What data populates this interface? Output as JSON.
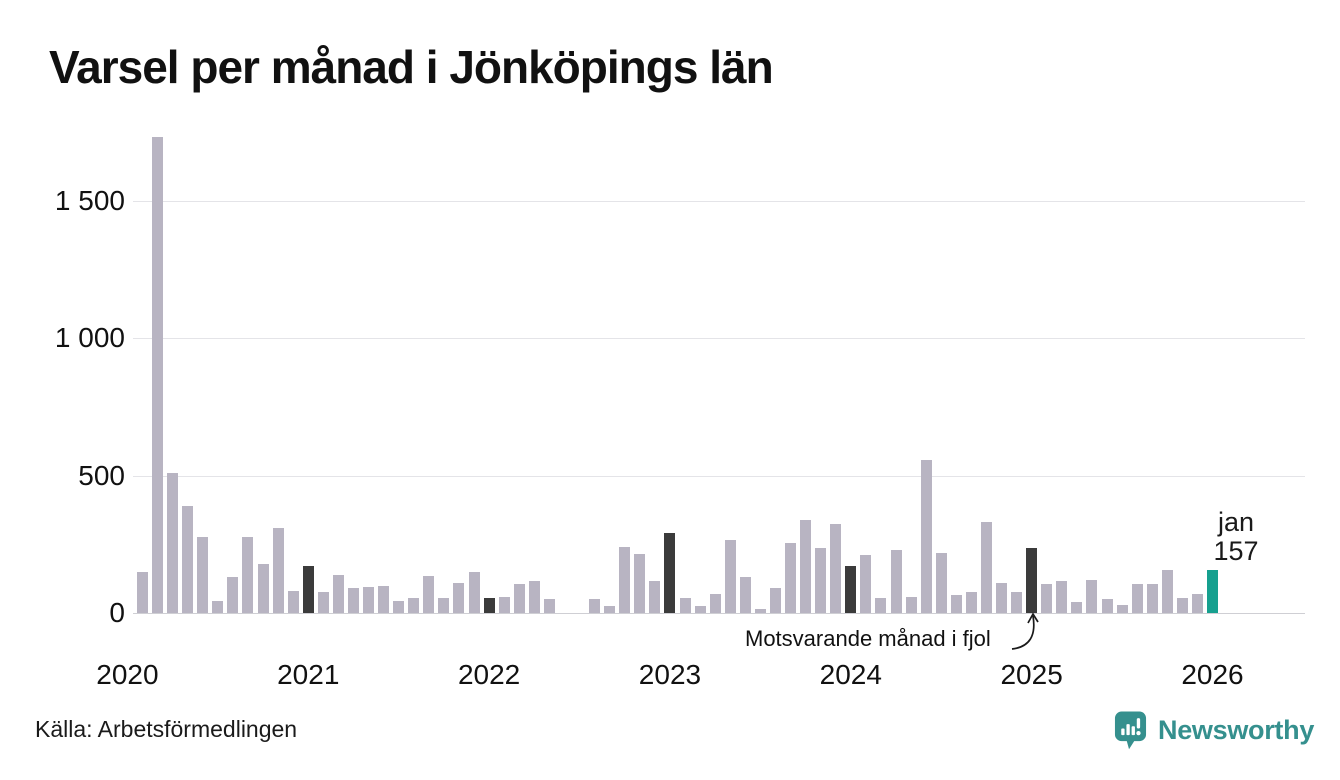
{
  "chart_data": {
    "type": "bar",
    "title": "Varsel per månad i Jönköpings län",
    "xlabel": "",
    "ylabel": "",
    "ylim": [
      0,
      1750
    ],
    "grid": "horizontal",
    "yticks": [
      {
        "value": 0,
        "label": "0"
      },
      {
        "value": 500,
        "label": "500"
      },
      {
        "value": 1000,
        "label": "1 000"
      },
      {
        "value": 1500,
        "label": "1 500"
      }
    ],
    "year_ticks": [
      "2020",
      "2021",
      "2022",
      "2023",
      "2024",
      "2025",
      "2026"
    ],
    "annotation": "Motsvarande månad i fjol",
    "current_label": {
      "month": "jan",
      "value": "157"
    },
    "colors": {
      "bar": "#b8b4c2",
      "highlight": "#3b3b3b",
      "current": "#16a08f"
    },
    "months": [
      {
        "month": "2020-02",
        "value": 150,
        "kind": "normal"
      },
      {
        "month": "2020-03",
        "value": 1730,
        "kind": "normal"
      },
      {
        "month": "2020-04",
        "value": 510,
        "kind": "normal"
      },
      {
        "month": "2020-05",
        "value": 390,
        "kind": "normal"
      },
      {
        "month": "2020-06",
        "value": 275,
        "kind": "normal"
      },
      {
        "month": "2020-07",
        "value": 45,
        "kind": "normal"
      },
      {
        "month": "2020-08",
        "value": 130,
        "kind": "normal"
      },
      {
        "month": "2020-09",
        "value": 275,
        "kind": "normal"
      },
      {
        "month": "2020-10",
        "value": 180,
        "kind": "normal"
      },
      {
        "month": "2020-11",
        "value": 310,
        "kind": "normal"
      },
      {
        "month": "2020-12",
        "value": 80,
        "kind": "normal"
      },
      {
        "month": "2021-01",
        "value": 170,
        "kind": "fjol"
      },
      {
        "month": "2021-02",
        "value": 75,
        "kind": "normal"
      },
      {
        "month": "2021-03",
        "value": 140,
        "kind": "normal"
      },
      {
        "month": "2021-04",
        "value": 90,
        "kind": "normal"
      },
      {
        "month": "2021-05",
        "value": 95,
        "kind": "normal"
      },
      {
        "month": "2021-06",
        "value": 100,
        "kind": "normal"
      },
      {
        "month": "2021-07",
        "value": 45,
        "kind": "normal"
      },
      {
        "month": "2021-08",
        "value": 55,
        "kind": "normal"
      },
      {
        "month": "2021-09",
        "value": 135,
        "kind": "normal"
      },
      {
        "month": "2021-10",
        "value": 55,
        "kind": "normal"
      },
      {
        "month": "2021-11",
        "value": 110,
        "kind": "normal"
      },
      {
        "month": "2021-12",
        "value": 150,
        "kind": "normal"
      },
      {
        "month": "2022-01",
        "value": 55,
        "kind": "fjol"
      },
      {
        "month": "2022-02",
        "value": 60,
        "kind": "normal"
      },
      {
        "month": "2022-03",
        "value": 105,
        "kind": "normal"
      },
      {
        "month": "2022-04",
        "value": 115,
        "kind": "normal"
      },
      {
        "month": "2022-05",
        "value": 50,
        "kind": "normal"
      },
      {
        "month": "2022-06",
        "value": 0,
        "kind": "normal"
      },
      {
        "month": "2022-07",
        "value": 0,
        "kind": "normal"
      },
      {
        "month": "2022-08",
        "value": 50,
        "kind": "normal"
      },
      {
        "month": "2022-09",
        "value": 25,
        "kind": "normal"
      },
      {
        "month": "2022-10",
        "value": 240,
        "kind": "normal"
      },
      {
        "month": "2022-11",
        "value": 215,
        "kind": "normal"
      },
      {
        "month": "2022-12",
        "value": 115,
        "kind": "normal"
      },
      {
        "month": "2023-01",
        "value": 290,
        "kind": "fjol"
      },
      {
        "month": "2023-02",
        "value": 55,
        "kind": "normal"
      },
      {
        "month": "2023-03",
        "value": 25,
        "kind": "normal"
      },
      {
        "month": "2023-04",
        "value": 70,
        "kind": "normal"
      },
      {
        "month": "2023-05",
        "value": 265,
        "kind": "normal"
      },
      {
        "month": "2023-06",
        "value": 130,
        "kind": "normal"
      },
      {
        "month": "2023-07",
        "value": 15,
        "kind": "normal"
      },
      {
        "month": "2023-08",
        "value": 90,
        "kind": "normal"
      },
      {
        "month": "2023-09",
        "value": 255,
        "kind": "normal"
      },
      {
        "month": "2023-10",
        "value": 340,
        "kind": "normal"
      },
      {
        "month": "2023-11",
        "value": 235,
        "kind": "normal"
      },
      {
        "month": "2023-12",
        "value": 325,
        "kind": "normal"
      },
      {
        "month": "2024-01",
        "value": 170,
        "kind": "fjol"
      },
      {
        "month": "2024-02",
        "value": 210,
        "kind": "normal"
      },
      {
        "month": "2024-03",
        "value": 55,
        "kind": "normal"
      },
      {
        "month": "2024-04",
        "value": 230,
        "kind": "normal"
      },
      {
        "month": "2024-05",
        "value": 60,
        "kind": "normal"
      },
      {
        "month": "2024-06",
        "value": 555,
        "kind": "normal"
      },
      {
        "month": "2024-07",
        "value": 220,
        "kind": "normal"
      },
      {
        "month": "2024-08",
        "value": 65,
        "kind": "normal"
      },
      {
        "month": "2024-09",
        "value": 75,
        "kind": "normal"
      },
      {
        "month": "2024-10",
        "value": 330,
        "kind": "normal"
      },
      {
        "month": "2024-11",
        "value": 110,
        "kind": "normal"
      },
      {
        "month": "2024-12",
        "value": 75,
        "kind": "normal"
      },
      {
        "month": "2025-01",
        "value": 235,
        "kind": "fjol"
      },
      {
        "month": "2025-02",
        "value": 105,
        "kind": "normal"
      },
      {
        "month": "2025-03",
        "value": 115,
        "kind": "normal"
      },
      {
        "month": "2025-04",
        "value": 40,
        "kind": "normal"
      },
      {
        "month": "2025-05",
        "value": 120,
        "kind": "normal"
      },
      {
        "month": "2025-06",
        "value": 50,
        "kind": "normal"
      },
      {
        "month": "2025-07",
        "value": 30,
        "kind": "normal"
      },
      {
        "month": "2025-08",
        "value": 105,
        "kind": "normal"
      },
      {
        "month": "2025-09",
        "value": 105,
        "kind": "normal"
      },
      {
        "month": "2025-10",
        "value": 155,
        "kind": "normal"
      },
      {
        "month": "2025-11",
        "value": 55,
        "kind": "normal"
      },
      {
        "month": "2025-12",
        "value": 70,
        "kind": "normal"
      },
      {
        "month": "2026-01",
        "value": 157,
        "kind": "current"
      }
    ]
  },
  "footer": {
    "source": "Källa: Arbetsförmedlingen",
    "logo_text": "Newsworthy"
  }
}
